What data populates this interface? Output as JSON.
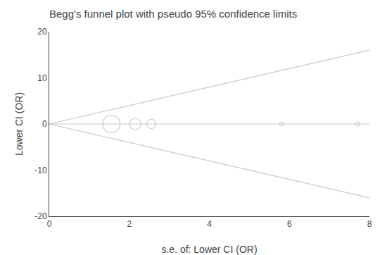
{
  "chart_data": {
    "type": "scatter",
    "title": "Begg's funnel plot with pseudo 95% confidence limits",
    "xlabel": "s.e. of: Lower CI (OR)",
    "ylabel": "Lower CI (OR)",
    "xlim": [
      0,
      8
    ],
    "ylim": [
      -20,
      20
    ],
    "xticks": [
      0,
      2,
      4,
      6,
      8
    ],
    "yticks": [
      -20,
      -10,
      0,
      10,
      20
    ],
    "grid": false,
    "series": [
      {
        "type": "line",
        "color": "#c8c8c8",
        "line_style": "solid",
        "x": [
          0,
          8
        ],
        "values": [
          0,
          16
        ]
      },
      {
        "type": "line",
        "color": "#c8c8c8",
        "line_style": "solid",
        "x": [
          0,
          8
        ],
        "values": [
          0,
          -16
        ]
      },
      {
        "type": "line",
        "color": "#c8c8c8",
        "line_style": "solid",
        "x": [
          0,
          8
        ],
        "values": [
          0,
          0
        ]
      },
      {
        "type": "scatter",
        "color": "#bbbbbb",
        "marker": "circle-open",
        "x": [
          1.55,
          2.15,
          2.55,
          5.8,
          7.7
        ],
        "values": [
          0.0,
          0.0,
          0.0,
          0.0,
          0.0
        ],
        "sizes": [
          320,
          130,
          90,
          18,
          18
        ]
      }
    ]
  }
}
